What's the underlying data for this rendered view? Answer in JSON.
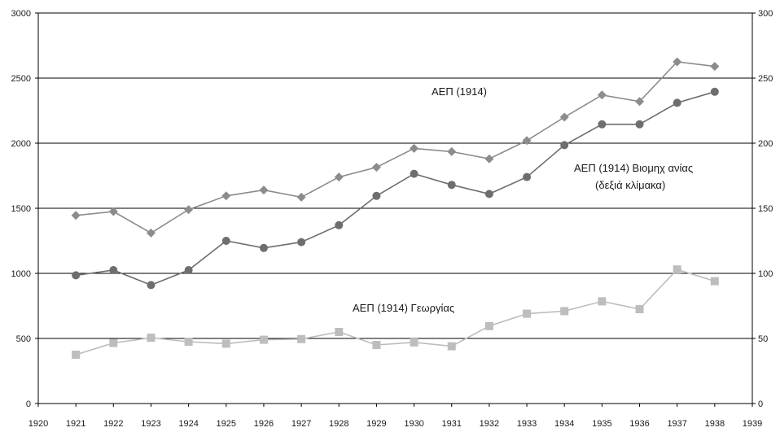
{
  "chart_data": {
    "type": "line",
    "x": [
      1921,
      1922,
      1923,
      1924,
      1925,
      1926,
      1927,
      1928,
      1929,
      1930,
      1931,
      1932,
      1933,
      1934,
      1935,
      1936,
      1937,
      1938
    ],
    "xlim": [
      1920,
      1939
    ],
    "x_ticks": [
      "1920",
      "1921",
      "1922",
      "1923",
      "1924",
      "1925",
      "1926",
      "1927",
      "1928",
      "1929",
      "1930",
      "1931",
      "1932",
      "1933",
      "1934",
      "1935",
      "1936",
      "1937",
      "1938",
      "1939"
    ],
    "y_left": {
      "lim": [
        0,
        3000
      ],
      "ticks": [
        "0",
        "500",
        "1000",
        "1500",
        "2000",
        "2500",
        "3000"
      ]
    },
    "y_right": {
      "lim": [
        0,
        300
      ],
      "ticks": [
        "0",
        "50",
        "100",
        "150",
        "200",
        "250",
        "300"
      ]
    },
    "grid": "horizontal",
    "series": [
      {
        "name": "ΑΕΠ (1914)",
        "axis": "left",
        "marker": "diamond",
        "color": "#8c8c8c",
        "values": [
          1445,
          1475,
          1310,
          1490,
          1595,
          1640,
          1585,
          1740,
          1815,
          1960,
          1935,
          1880,
          2020,
          2200,
          2370,
          2320,
          2625,
          2590
        ]
      },
      {
        "name": "ΑΕΠ (1914) Βιομηχανίας",
        "axis": "right",
        "marker": "circle",
        "color": "#6e6e6e",
        "values": [
          98.5,
          102.5,
          91,
          102.5,
          125,
          119.5,
          124,
          137,
          159.5,
          176.5,
          168,
          161,
          174,
          198.5,
          214.5,
          214.5,
          231,
          239.5
        ]
      },
      {
        "name": "ΑΕΠ (1914) Γεωργίας",
        "axis": "left",
        "marker": "square",
        "color": "#bdbdbd",
        "values": [
          375,
          465,
          505,
          475,
          460,
          490,
          495,
          550,
          450,
          470,
          440,
          595,
          690,
          710,
          785,
          725,
          1030,
          940
        ]
      }
    ],
    "annotations": {
      "gdp": "ΑΕΠ (1914)",
      "industry_line1": "ΑΕΠ (1914) Βιομηχ ανίας",
      "industry_line2": "(δεξιά κλίμακα)",
      "agriculture": "ΑΕΠ (1914) Γεωργίας"
    }
  }
}
